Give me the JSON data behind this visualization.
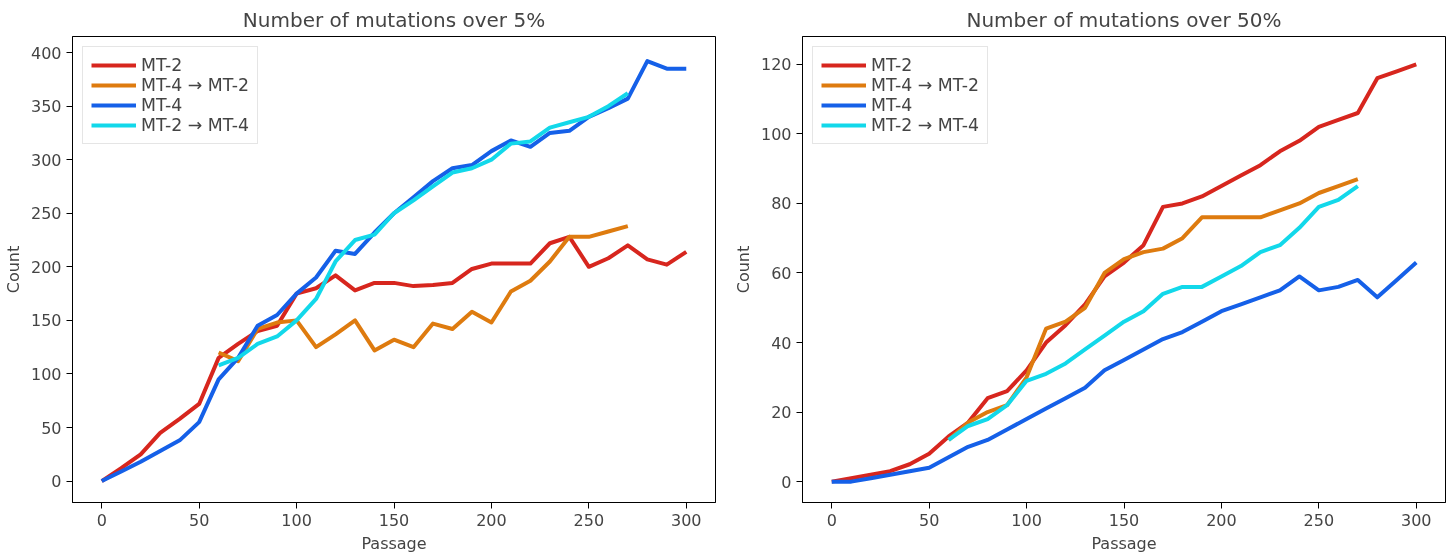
{
  "chart_data": [
    {
      "type": "line",
      "title": "Number of mutations over 5%",
      "xlabel": "Passage",
      "ylabel": "Count",
      "xlim": [
        -15,
        315
      ],
      "ylim": [
        -20,
        415
      ],
      "xticks": [
        0,
        50,
        100,
        150,
        200,
        250,
        300
      ],
      "yticks": [
        0,
        50,
        100,
        150,
        200,
        250,
        300,
        350,
        400
      ],
      "grid": false,
      "legend": "top left",
      "marker": "none",
      "line_style": "solid",
      "series": [
        {
          "name": "MT-2",
          "color": "#d7261e",
          "x": [
            0,
            10,
            20,
            30,
            40,
            50,
            60,
            70,
            80,
            90,
            100,
            110,
            120,
            130,
            140,
            150,
            160,
            170,
            180,
            190,
            200,
            210,
            220,
            230,
            240,
            250,
            260,
            270,
            280,
            290,
            300
          ],
          "values": [
            0,
            12,
            25,
            45,
            58,
            72,
            115,
            128,
            140,
            145,
            175,
            180,
            192,
            178,
            185,
            185,
            182,
            183,
            185,
            198,
            203,
            203,
            203,
            222,
            228,
            200,
            208,
            220,
            207,
            202,
            214
          ]
        },
        {
          "name": "MT-4 → MT-2",
          "color": "#de7b0f",
          "x": [
            60,
            70,
            80,
            90,
            100,
            110,
            120,
            130,
            140,
            150,
            160,
            170,
            180,
            190,
            200,
            210,
            220,
            230,
            240,
            250,
            260,
            270
          ],
          "values": [
            120,
            112,
            142,
            148,
            150,
            125,
            137,
            150,
            122,
            132,
            125,
            147,
            142,
            158,
            148,
            177,
            187,
            205,
            228,
            228,
            233,
            238
          ]
        },
        {
          "name": "MT-4",
          "color": "#1560e8",
          "x": [
            0,
            10,
            20,
            30,
            40,
            50,
            60,
            70,
            80,
            90,
            100,
            110,
            120,
            130,
            140,
            150,
            160,
            170,
            180,
            190,
            200,
            210,
            220,
            230,
            240,
            250,
            260,
            270,
            280,
            290,
            300
          ],
          "values": [
            0,
            9,
            18,
            28,
            38,
            55,
            95,
            115,
            145,
            155,
            175,
            190,
            215,
            212,
            232,
            250,
            265,
            280,
            292,
            295,
            308,
            318,
            312,
            325,
            327,
            340,
            348,
            357,
            392,
            385,
            385
          ]
        },
        {
          "name": "MT-2 → MT-4",
          "color": "#12d8ea",
          "x": [
            60,
            70,
            80,
            90,
            100,
            110,
            120,
            130,
            140,
            150,
            160,
            170,
            180,
            190,
            200,
            210,
            220,
            230,
            240,
            250,
            260,
            270
          ],
          "values": [
            108,
            115,
            128,
            135,
            150,
            170,
            205,
            225,
            230,
            250,
            262,
            275,
            288,
            292,
            300,
            315,
            317,
            330,
            335,
            340,
            350,
            362
          ]
        }
      ]
    },
    {
      "type": "line",
      "title": "Number of mutations over 50%",
      "xlabel": "Passage",
      "ylabel": "Count",
      "xlim": [
        -15,
        315
      ],
      "ylim": [
        -6,
        128
      ],
      "xticks": [
        0,
        50,
        100,
        150,
        200,
        250,
        300
      ],
      "yticks": [
        0,
        20,
        40,
        60,
        80,
        100,
        120
      ],
      "grid": false,
      "legend": "top left",
      "marker": "none",
      "line_style": "solid",
      "series": [
        {
          "name": "MT-2",
          "color": "#d7261e",
          "x": [
            0,
            10,
            20,
            30,
            40,
            50,
            60,
            70,
            80,
            90,
            100,
            110,
            120,
            130,
            140,
            150,
            160,
            170,
            180,
            190,
            200,
            210,
            220,
            230,
            240,
            250,
            260,
            270,
            280,
            290,
            300
          ],
          "values": [
            0,
            1,
            2,
            3,
            5,
            8,
            13,
            17,
            24,
            26,
            32,
            40,
            45,
            51,
            59,
            63,
            68,
            79,
            80,
            82,
            85,
            88,
            91,
            95,
            98,
            102,
            104,
            106,
            116,
            118,
            120
          ]
        },
        {
          "name": "MT-4 → MT-2",
          "color": "#de7b0f",
          "x": [
            60,
            70,
            80,
            90,
            100,
            110,
            120,
            130,
            140,
            150,
            160,
            170,
            180,
            190,
            200,
            210,
            220,
            230,
            240,
            250,
            260,
            270
          ],
          "values": [
            12,
            17,
            20,
            22,
            30,
            44,
            46,
            50,
            60,
            64,
            66,
            67,
            70,
            76,
            76,
            76,
            76,
            78,
            80,
            83,
            85,
            87
          ]
        },
        {
          "name": "MT-4",
          "color": "#1560e8",
          "x": [
            0,
            10,
            20,
            30,
            40,
            50,
            60,
            70,
            80,
            90,
            100,
            110,
            120,
            130,
            140,
            150,
            160,
            170,
            180,
            190,
            200,
            210,
            220,
            230,
            240,
            250,
            260,
            270,
            280,
            290,
            300
          ],
          "values": [
            0,
            0,
            1,
            2,
            3,
            4,
            7,
            10,
            12,
            15,
            18,
            21,
            24,
            27,
            32,
            35,
            38,
            41,
            43,
            46,
            49,
            51,
            53,
            55,
            59,
            55,
            56,
            58,
            53,
            58,
            63
          ]
        },
        {
          "name": "MT-2 → MT-4",
          "color": "#12d8ea",
          "x": [
            60,
            70,
            80,
            90,
            100,
            110,
            120,
            130,
            140,
            150,
            160,
            170,
            180,
            190,
            200,
            210,
            220,
            230,
            240,
            250,
            260,
            270
          ],
          "values": [
            12,
            16,
            18,
            22,
            29,
            31,
            34,
            38,
            42,
            46,
            49,
            54,
            56,
            56,
            59,
            62,
            66,
            68,
            73,
            79,
            81,
            85
          ]
        }
      ]
    }
  ]
}
